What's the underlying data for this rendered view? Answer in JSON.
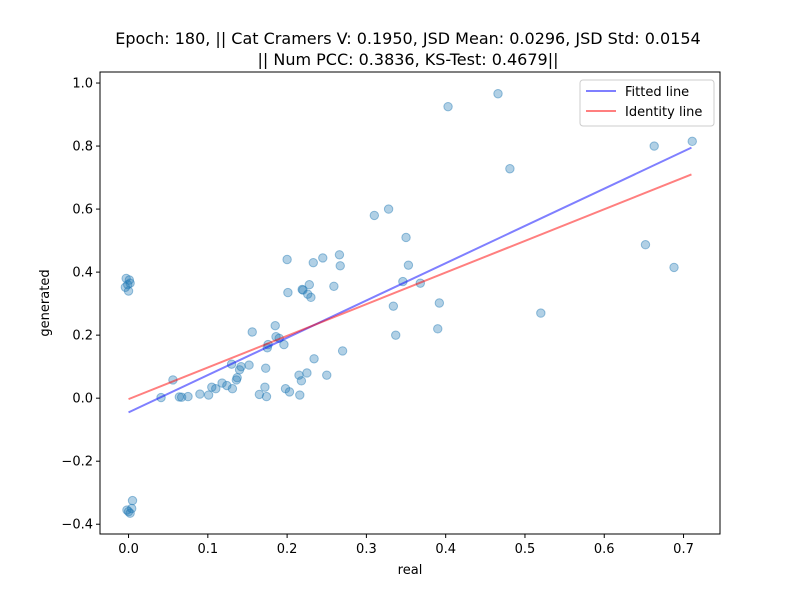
{
  "chart_data": {
    "type": "scatter",
    "title_lines": [
      "Epoch: 180, || Cat Cramers V: 0.1950, JSD Mean: 0.0296, JSD Std: 0.0154",
      "|| Num PCC: 0.3836, KS-Test: 0.4679||"
    ],
    "xlabel": "real",
    "ylabel": "generated",
    "xlim": [
      -0.036,
      0.746
    ],
    "ylim": [
      -0.431,
      1.035
    ],
    "xticks": [
      0.0,
      0.1,
      0.2,
      0.3,
      0.4,
      0.5,
      0.6,
      0.7
    ],
    "xtick_labels": [
      "0.0",
      "0.1",
      "0.2",
      "0.3",
      "0.4",
      "0.5",
      "0.6",
      "0.7"
    ],
    "yticks": [
      -0.4,
      -0.2,
      0.0,
      0.2,
      0.4,
      0.6,
      0.8,
      1.0
    ],
    "ytick_labels": [
      "−0.4",
      "−0.2",
      "0.0",
      "0.2",
      "0.4",
      "0.6",
      "0.8",
      "1.0"
    ],
    "grid": false,
    "legend_placement": "top-right",
    "colors": {
      "points": "#1f77b4",
      "fitted": "#0000ff",
      "identity": "#ff0000"
    },
    "series": [
      {
        "name": "Fitted line",
        "type": "line",
        "x": [
          0.0,
          0.71
        ],
        "y": [
          -0.045,
          0.795
        ]
      },
      {
        "name": "Identity line",
        "type": "line",
        "x": [
          0.0,
          0.71
        ],
        "y": [
          -0.003,
          0.71
        ]
      },
      {
        "type": "scatter",
        "x": [
          -0.003,
          0.001,
          -0.001,
          0.002,
          -0.004,
          0.0,
          -0.002,
          0.0,
          0.002,
          0.004,
          0.005,
          0.041,
          0.056,
          0.064,
          0.067,
          0.075,
          0.09,
          0.101,
          0.105,
          0.11,
          0.118,
          0.124,
          0.13,
          0.131,
          0.136,
          0.137,
          0.14,
          0.142,
          0.152,
          0.156,
          0.165,
          0.172,
          0.173,
          0.174,
          0.175,
          0.176,
          0.185,
          0.186,
          0.19,
          0.196,
          0.198,
          0.2,
          0.201,
          0.203,
          0.215,
          0.216,
          0.218,
          0.219,
          0.22,
          0.225,
          0.226,
          0.228,
          0.23,
          0.233,
          0.234,
          0.245,
          0.25,
          0.259,
          0.266,
          0.267,
          0.27,
          0.31,
          0.328,
          0.334,
          0.337,
          0.346,
          0.35,
          0.353,
          0.368,
          0.39,
          0.392,
          0.403,
          0.466,
          0.481,
          0.52,
          0.652,
          0.663,
          0.688,
          0.711
        ],
        "y": [
          0.38,
          0.375,
          0.36,
          0.365,
          0.352,
          0.34,
          -0.355,
          -0.36,
          -0.365,
          -0.35,
          -0.325,
          0.002,
          0.058,
          0.004,
          0.003,
          0.005,
          0.013,
          0.01,
          0.035,
          0.03,
          0.048,
          0.04,
          0.108,
          0.03,
          0.058,
          0.065,
          0.09,
          0.1,
          0.105,
          0.21,
          0.012,
          0.035,
          0.095,
          0.005,
          0.16,
          0.17,
          0.23,
          0.195,
          0.19,
          0.17,
          0.03,
          0.44,
          0.335,
          0.02,
          0.073,
          0.01,
          0.055,
          0.345,
          0.343,
          0.08,
          0.33,
          0.36,
          0.32,
          0.43,
          0.125,
          0.445,
          0.073,
          0.355,
          0.455,
          0.42,
          0.15,
          0.58,
          0.6,
          0.292,
          0.2,
          0.37,
          0.51,
          0.422,
          0.365,
          0.22,
          0.302,
          0.925,
          0.966,
          0.728,
          0.27,
          0.487,
          0.8,
          0.415,
          0.815
        ]
      }
    ]
  }
}
